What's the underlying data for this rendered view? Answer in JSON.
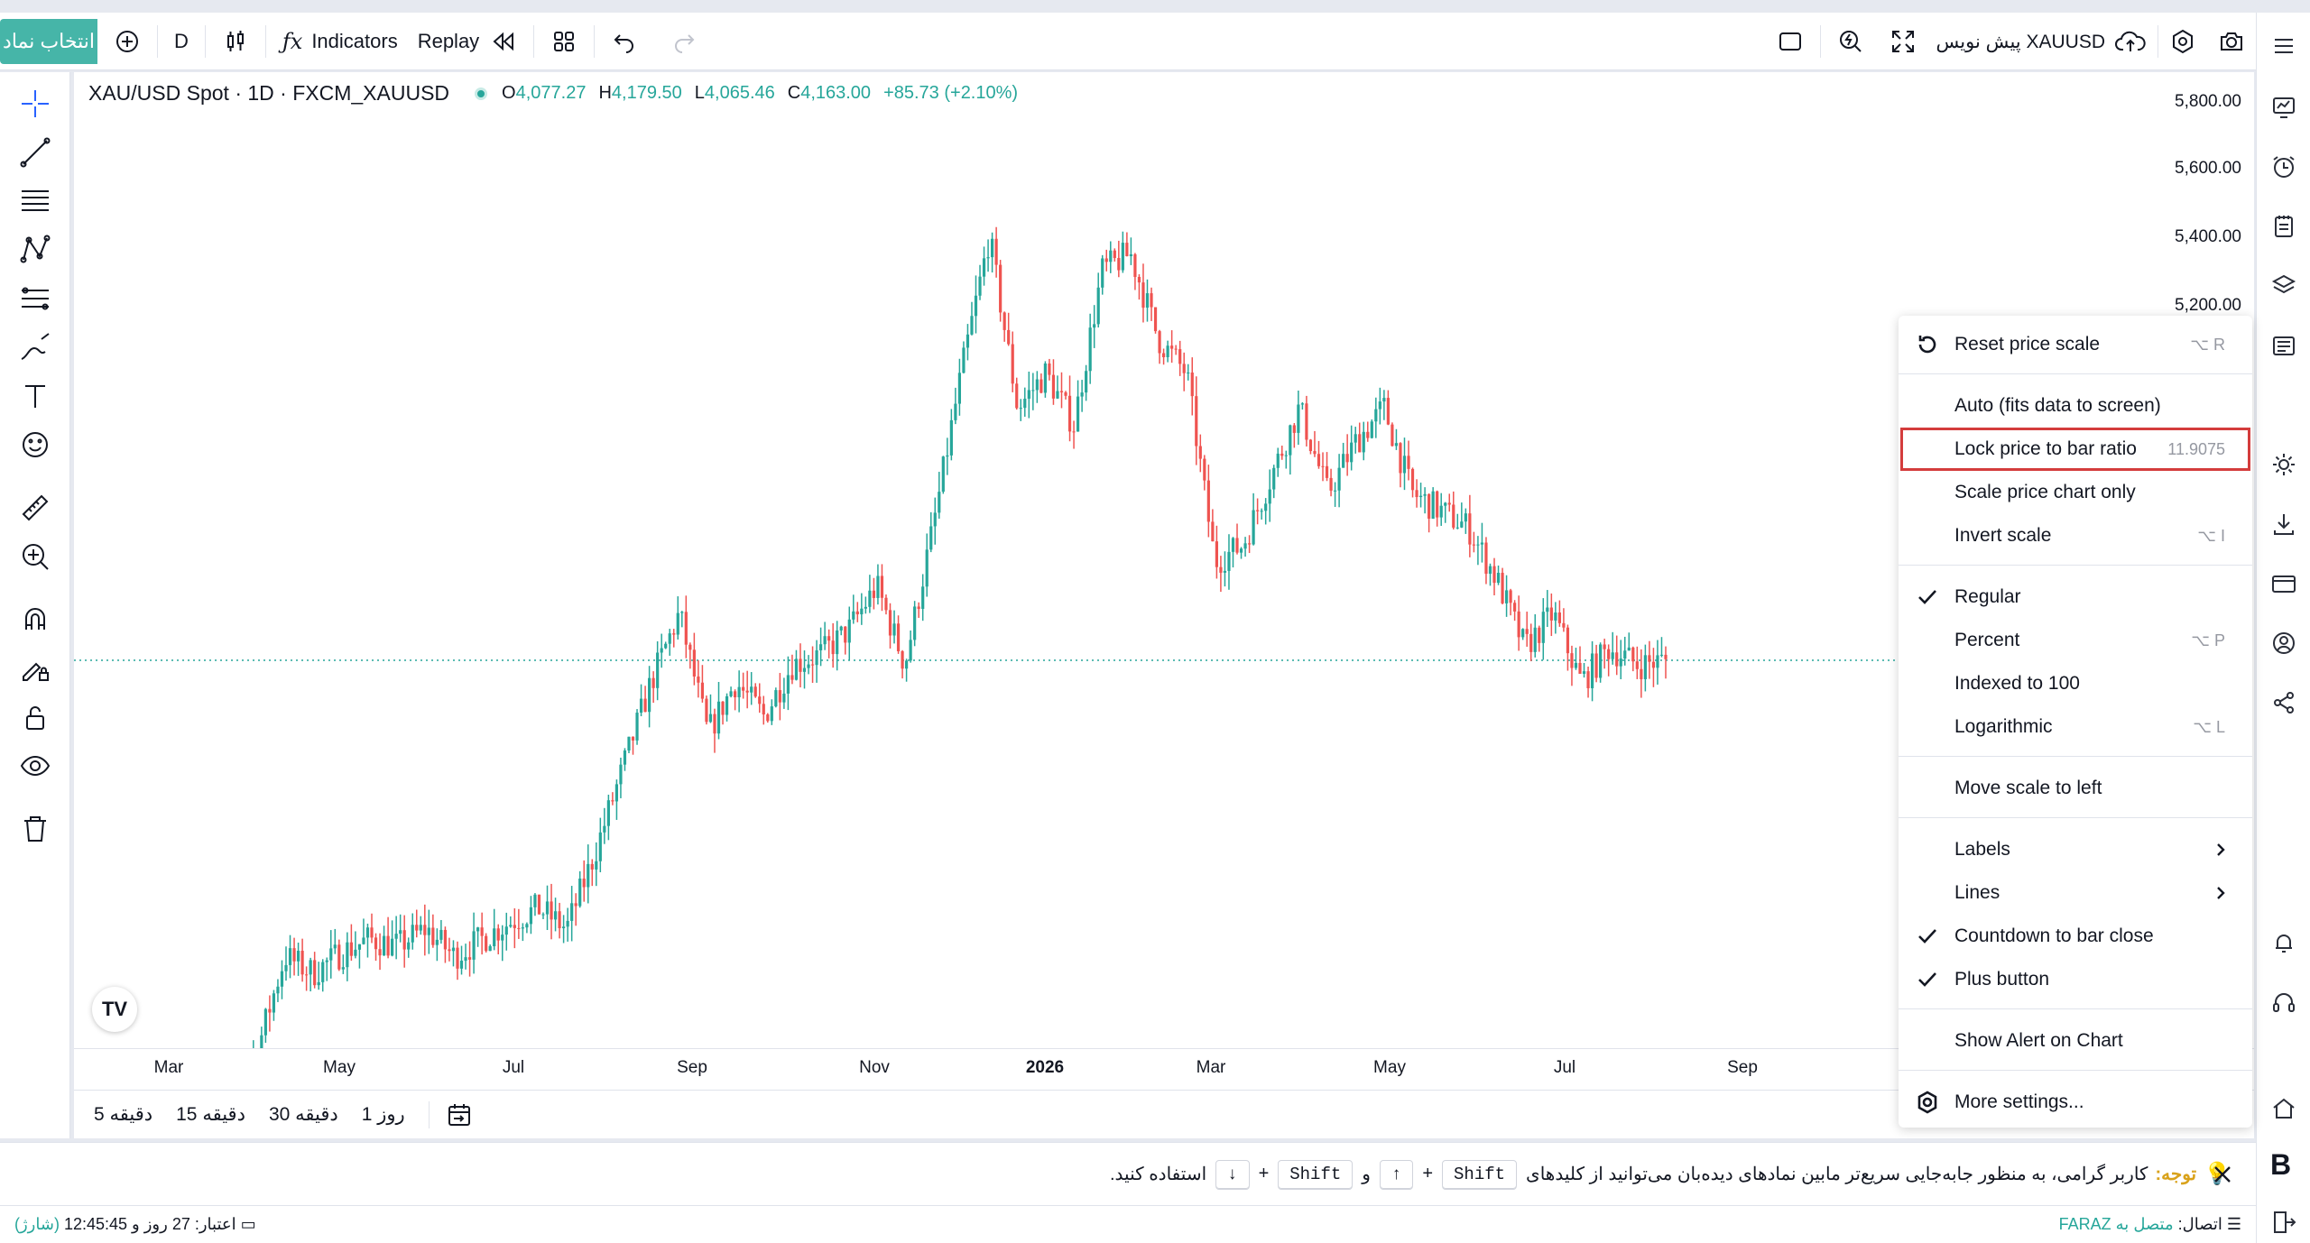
{
  "toolbar": {
    "symbol_select": "انتخاب نماد",
    "interval": "D",
    "indicators": "Indicators",
    "replay": "Replay",
    "draft_label": "پیش نویس XAUUSD"
  },
  "legend": {
    "title": "XAU/USD Spot · 1D · FXCM_XAUUSD",
    "open_key": "O",
    "open": "4,077.27",
    "high_key": "H",
    "high": "4,179.50",
    "low_key": "L",
    "low": "4,065.46",
    "close_key": "C",
    "close": "4,163.00",
    "change": "+85.73 (+2.10%)"
  },
  "price_axis": [
    "5,800.00",
    "5,600.00",
    "5,400.00",
    "5,200.00"
  ],
  "time_axis": [
    "Mar",
    "May",
    "Jul",
    "Sep",
    "Nov",
    "2026",
    "Mar",
    "May",
    "Jul",
    "Sep"
  ],
  "ranges": [
    "5 دقیقه",
    "15 دقیقه",
    "30 دقیقه",
    "1 روز"
  ],
  "menu": {
    "reset": "Reset price scale",
    "reset_sc": "⌥ R",
    "auto": "Auto (fits data to screen)",
    "lock": "Lock price to bar ratio",
    "lock_val": "11.9075",
    "scale_only": "Scale price chart only",
    "invert": "Invert scale",
    "invert_sc": "⌥ I",
    "regular": "Regular",
    "percent": "Percent",
    "percent_sc": "⌥ P",
    "indexed": "Indexed to 100",
    "log": "Logarithmic",
    "log_sc": "⌥ L",
    "move_left": "Move scale to left",
    "labels": "Labels",
    "lines": "Lines",
    "countdown": "Countdown to bar close",
    "plus": "Plus button",
    "alert": "Show Alert on Chart",
    "more": "More settings..."
  },
  "notification": {
    "warn": "توجه:",
    "text": "کاربر گرامی، به منظور جابه‌جایی سریع‌تر مابین نمادهای دیده‌بان می‌توانید از کلیدهای",
    "shift1": "Shift",
    "plus1": "+",
    "up": "↑",
    "and": "و",
    "shift2": "Shift",
    "plus2": "+",
    "down": "↓",
    "end": "استفاده کنید."
  },
  "status": {
    "credit": "اعتبار: 27 روز و 12:45:45",
    "charge": "(شارژ)",
    "connection": "اتصال:",
    "connected": "متصل به FARAZ"
  },
  "chart_data": {
    "type": "candlestick",
    "symbol": "XAU/USD Spot · 1D · FXCM_XAUUSD",
    "x_ticks": [
      "Mar",
      "May",
      "Jul",
      "Sep",
      "Nov",
      "2026",
      "Mar",
      "May",
      "Jul",
      "Sep"
    ],
    "y_ticks": [
      5800,
      5600,
      5400,
      5200
    ],
    "last": {
      "open": 4077.27,
      "high": 4179.5,
      "low": 4065.46,
      "close": 4163.0,
      "change": 85.73,
      "change_pct": 2.1
    },
    "close_path": [
      2860,
      2900,
      3020,
      3300,
      3250,
      3310,
      3350,
      3330,
      3380,
      3300,
      3350,
      3400,
      3440,
      3380,
      3600,
      3850,
      4100,
      4300,
      3950,
      4100,
      4000,
      4150,
      4180,
      4250,
      4380,
      4150,
      4550,
      5000,
      5400,
      4900,
      5000,
      4850,
      5300,
      5350,
      5100,
      5000,
      4450,
      4500,
      4700,
      4900,
      4650,
      4800,
      4900,
      4650,
      4600,
      4550,
      4400,
      4200,
      4300,
      4100,
      4200,
      4150,
      4163
    ]
  }
}
